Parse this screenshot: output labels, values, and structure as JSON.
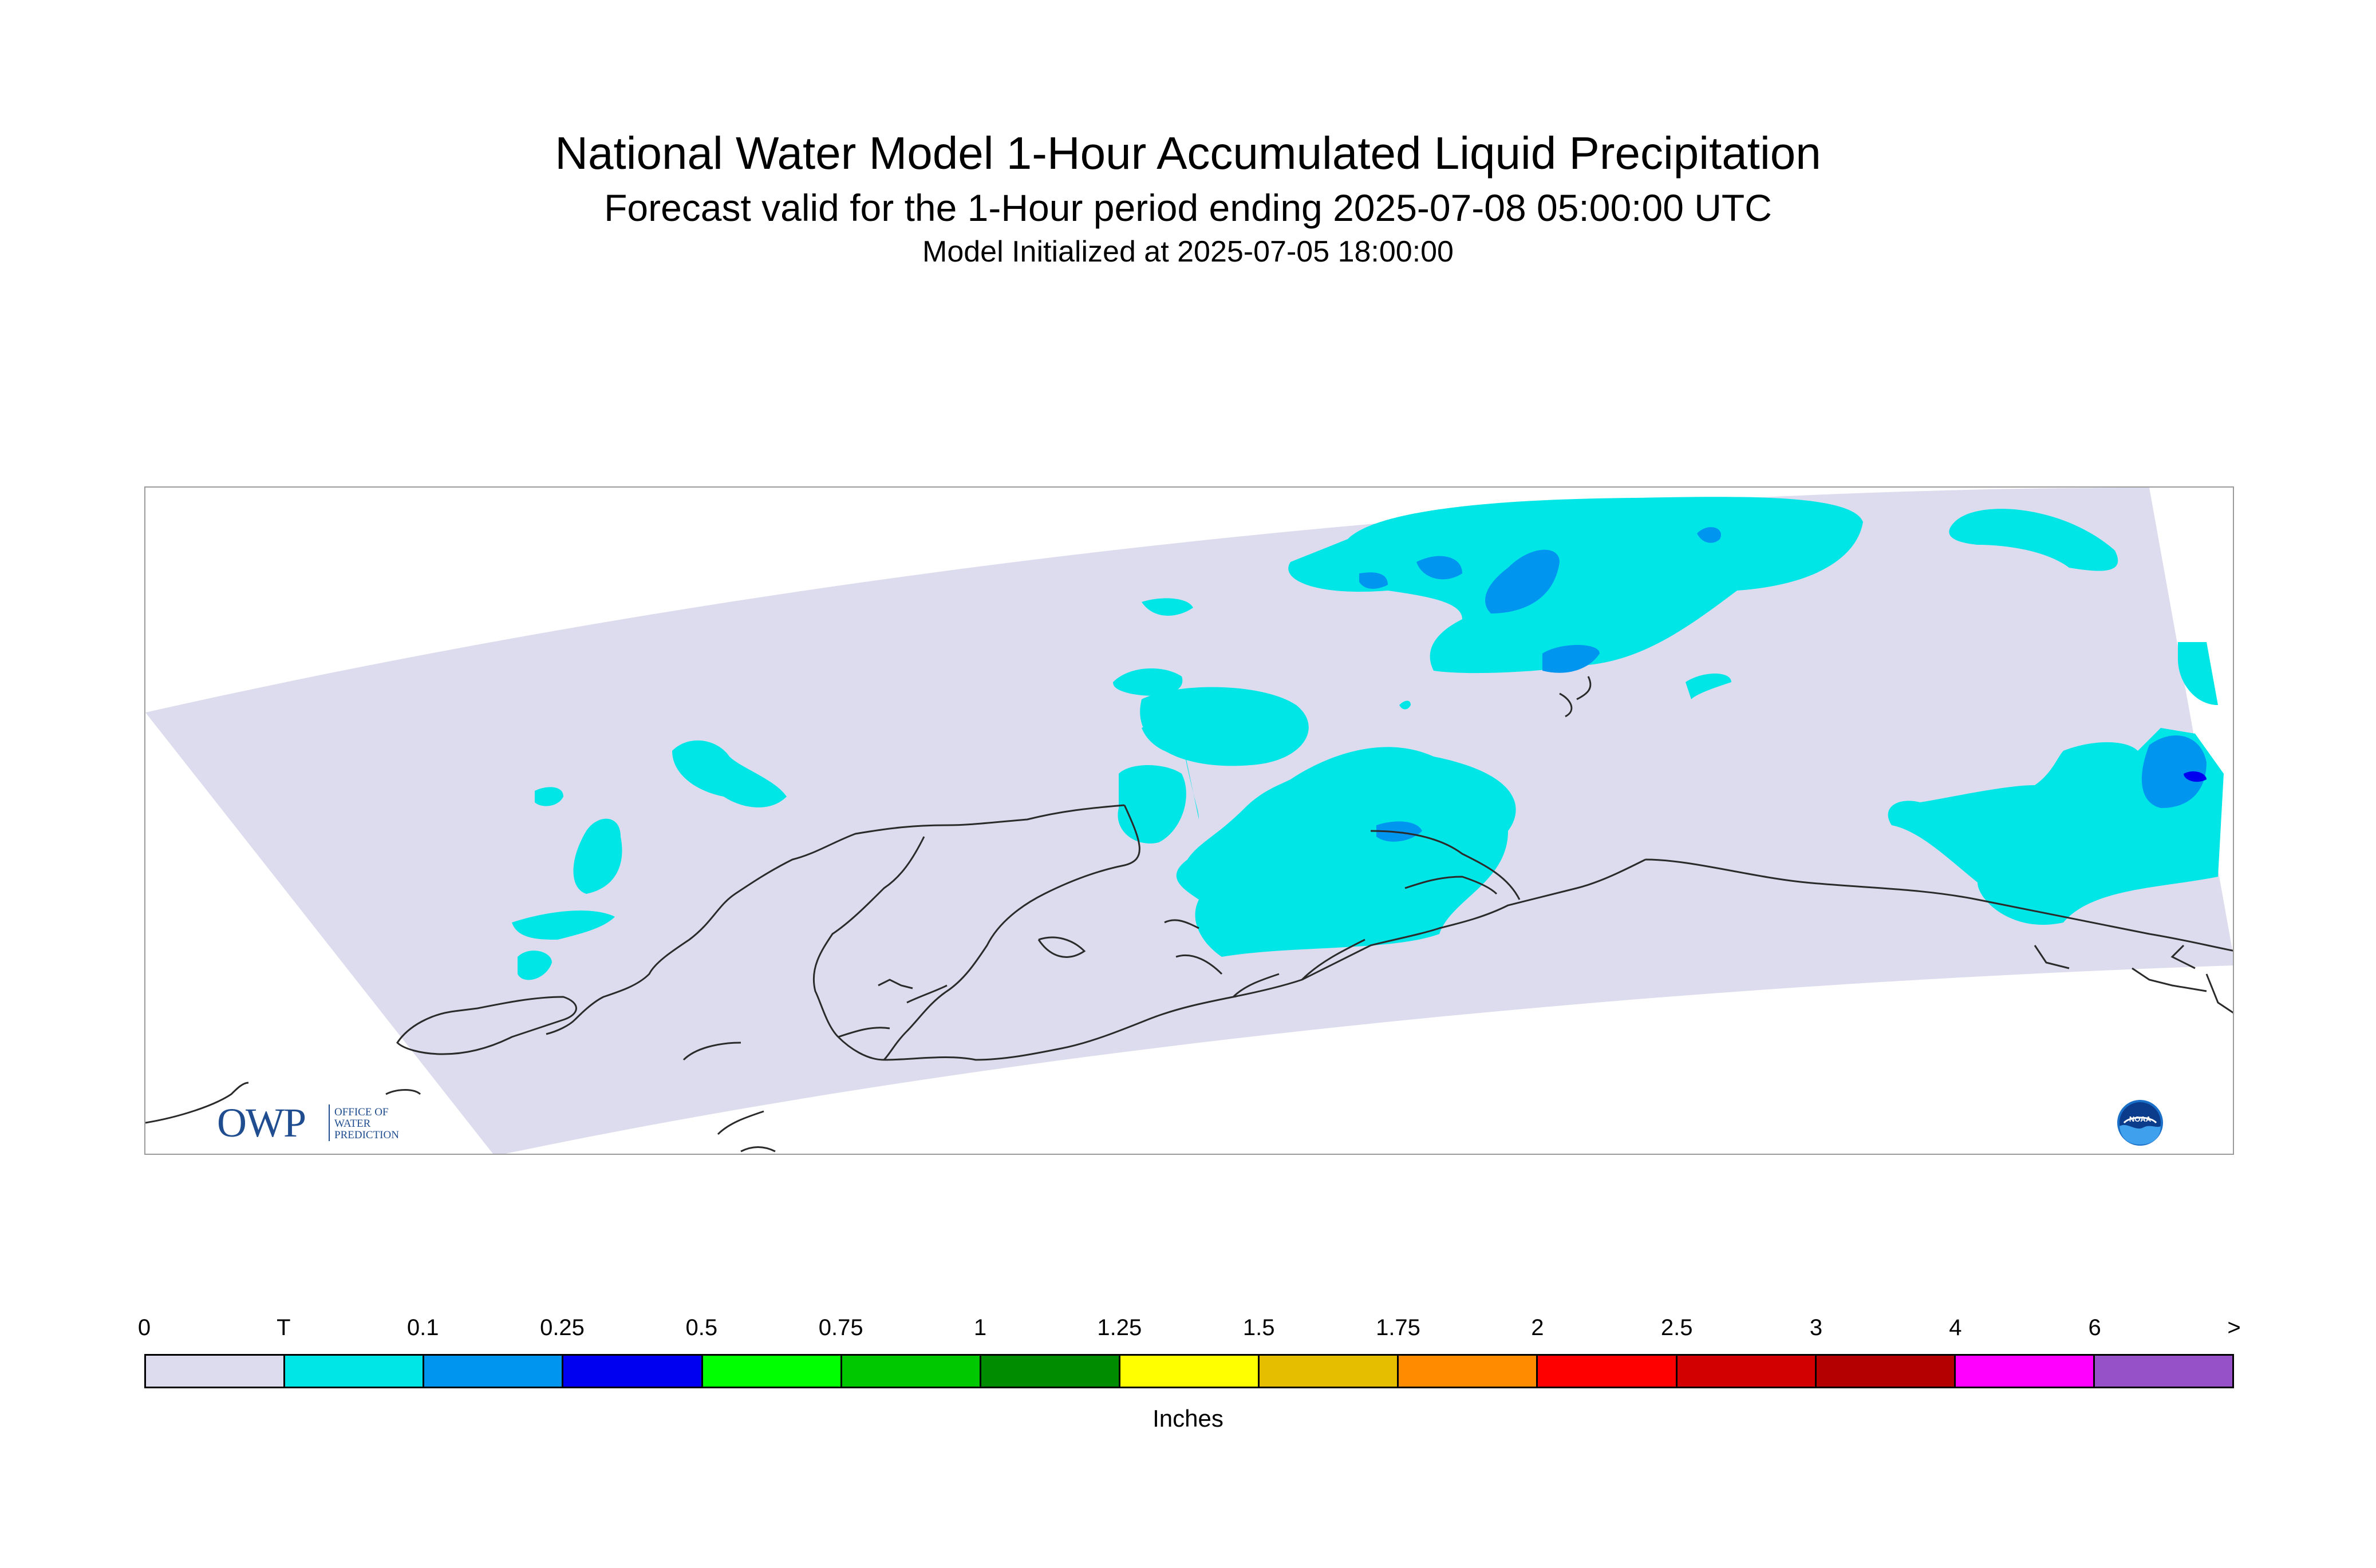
{
  "title": {
    "line1": "National Water Model 1-Hour Accumulated Liquid Precipitation",
    "line2": "Forecast valid for the 1-Hour period ending 2025-07-08 05:00:00 UTC",
    "line3": "Model Initialized at 2025-07-05 18:00:00"
  },
  "map": {
    "region": "Alaska",
    "domain_color": "#dcdcee",
    "coastline_color": "#2a2a2a",
    "precip_present": [
      "T",
      "0.1",
      "0.25"
    ]
  },
  "logos": {
    "owp": {
      "abbr": "OWP",
      "line1": "OFFICE OF",
      "line2": "WATER",
      "line3": "PREDICTION",
      "icon": "owp-logo"
    },
    "noaa": {
      "text": "NOAA",
      "icon": "noaa-logo"
    }
  },
  "legend": {
    "units": "Inches",
    "labels": [
      "0",
      "T",
      "0.1",
      "0.25",
      "0.5",
      "0.75",
      "1",
      "1.25",
      "1.5",
      "1.75",
      "2",
      "2.5",
      "3",
      "4",
      "6",
      ">"
    ],
    "colors": [
      "#dcdcee",
      "#00e6e6",
      "#0096f0",
      "#0000f0",
      "#00ff00",
      "#00c800",
      "#008c00",
      "#ffff00",
      "#e6be00",
      "#ff8c00",
      "#ff0000",
      "#d20000",
      "#b40000",
      "#ff00ff",
      "#9650c8"
    ]
  }
}
